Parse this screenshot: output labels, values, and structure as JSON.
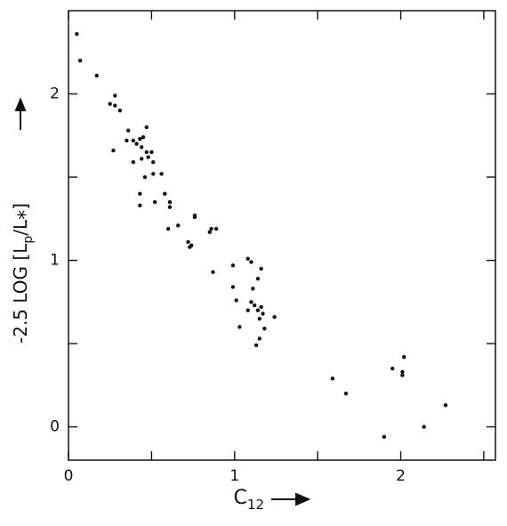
{
  "chart_data": {
    "type": "scatter",
    "ylabel": [
      "-2.5 LOG [L",
      "p",
      "/L",
      "*",
      "]"
    ],
    "xlabel": [
      "C",
      "12"
    ],
    "color": "#111111",
    "xlim": [
      0,
      2.57
    ],
    "ylim": [
      -0.2,
      2.5
    ],
    "xticks": [
      0,
      1,
      2
    ],
    "yticks": [
      0,
      1,
      2
    ],
    "xminor": [
      0.5,
      1.5,
      2.5
    ],
    "yminor": [
      0.5,
      1.5
    ],
    "x": [
      0.05,
      0.07,
      0.17,
      0.28,
      0.25,
      0.28,
      0.31,
      0.36,
      0.27,
      0.35,
      0.39,
      0.41,
      0.43,
      0.45,
      0.47,
      0.44,
      0.47,
      0.5,
      0.48,
      0.44,
      0.51,
      0.39,
      0.51,
      0.56,
      0.46,
      0.43,
      0.58,
      0.61,
      0.61,
      0.52,
      0.43,
      0.66,
      0.6,
      0.76,
      0.76,
      0.86,
      0.89,
      0.85,
      0.72,
      0.74,
      0.73,
      0.87,
      1.08,
      0.99,
      1.1,
      1.16,
      1.14,
      0.99,
      1.11,
      1.01,
      1.1,
      1.12,
      1.16,
      1.14,
      1.08,
      1.17,
      1.24,
      1.15,
      1.03,
      1.18,
      1.15,
      1.13,
      1.59,
      1.67,
      1.95,
      2.02,
      2.01,
      2.01,
      1.9,
      2.14,
      2.27
    ],
    "y": [
      2.36,
      2.2,
      2.11,
      1.99,
      1.94,
      1.93,
      1.9,
      1.78,
      1.66,
      1.72,
      1.72,
      1.7,
      1.73,
      1.74,
      1.8,
      1.68,
      1.65,
      1.65,
      1.62,
      1.61,
      1.59,
      1.59,
      1.52,
      1.52,
      1.5,
      1.4,
      1.4,
      1.35,
      1.32,
      1.35,
      1.33,
      1.21,
      1.19,
      1.27,
      1.26,
      1.19,
      1.19,
      1.17,
      1.11,
      1.09,
      1.08,
      0.93,
      1.01,
      0.97,
      0.99,
      0.95,
      0.89,
      0.84,
      0.83,
      0.76,
      0.75,
      0.73,
      0.72,
      0.7,
      0.7,
      0.68,
      0.66,
      0.65,
      0.6,
      0.59,
      0.53,
      0.49,
      0.29,
      0.2,
      0.35,
      0.42,
      0.33,
      0.31,
      -0.06,
      0.0,
      0.13
    ]
  }
}
